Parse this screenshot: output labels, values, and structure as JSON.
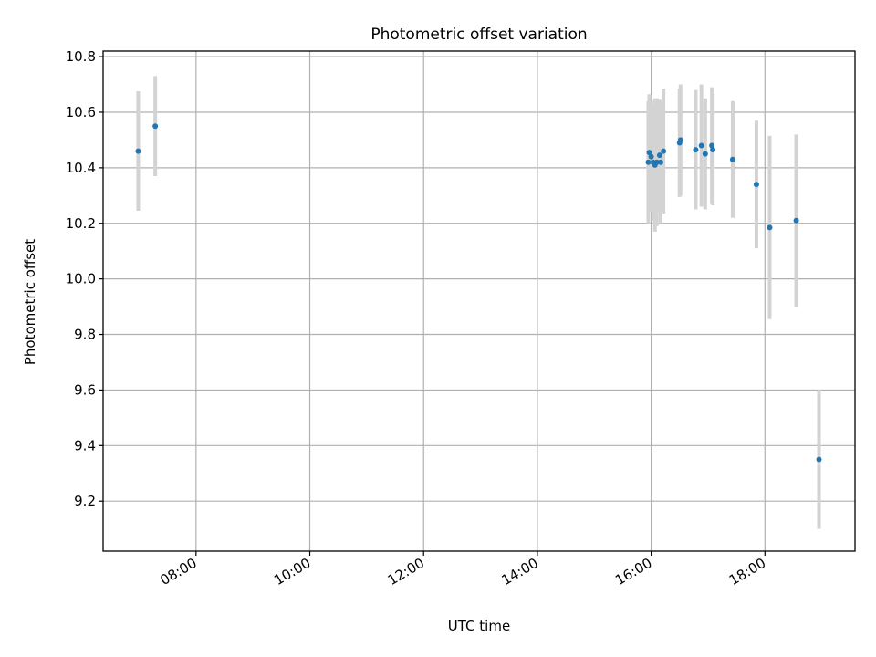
{
  "chart_data": {
    "type": "scatter",
    "title": "Photometric offset variation",
    "xlabel": "UTC time",
    "ylabel": "Photometric offset",
    "xlim": [
      "06:22",
      "19:35"
    ],
    "ylim": [
      9.02,
      10.82
    ],
    "x_ticks": [
      "08:00",
      "10:00",
      "12:00",
      "14:00",
      "16:00",
      "18:00"
    ],
    "y_ticks": [
      "9.2",
      "9.4",
      "9.6",
      "9.8",
      "10.0",
      "10.2",
      "10.4",
      "10.6",
      "10.8"
    ],
    "grid": true,
    "legend": "none",
    "colors": {
      "point": "#1f77b4",
      "errorbar": "#d3d3d3",
      "grid": "#b0b0b0"
    },
    "points": [
      {
        "x": "06:59",
        "y": 10.46,
        "err": 0.215
      },
      {
        "x": "07:17",
        "y": 10.55,
        "err": 0.18
      },
      {
        "x": "15:57",
        "y": 10.42,
        "err": 0.22
      },
      {
        "x": "15:58",
        "y": 10.455,
        "err": 0.21
      },
      {
        "x": "16:00",
        "y": 10.44,
        "err": 0.2
      },
      {
        "x": "16:02",
        "y": 10.42,
        "err": 0.21
      },
      {
        "x": "16:04",
        "y": 10.41,
        "err": 0.24
      },
      {
        "x": "16:06",
        "y": 10.42,
        "err": 0.23
      },
      {
        "x": "16:09",
        "y": 10.445,
        "err": 0.2
      },
      {
        "x": "16:10",
        "y": 10.42,
        "err": 0.22
      },
      {
        "x": "16:13",
        "y": 10.46,
        "err": 0.225
      },
      {
        "x": "16:30",
        "y": 10.49,
        "err": 0.195
      },
      {
        "x": "16:31",
        "y": 10.5,
        "err": 0.2
      },
      {
        "x": "16:47",
        "y": 10.465,
        "err": 0.215
      },
      {
        "x": "16:53",
        "y": 10.48,
        "err": 0.22
      },
      {
        "x": "16:57",
        "y": 10.45,
        "err": 0.2
      },
      {
        "x": "17:04",
        "y": 10.48,
        "err": 0.21
      },
      {
        "x": "17:05",
        "y": 10.465,
        "err": 0.2
      },
      {
        "x": "17:26",
        "y": 10.43,
        "err": 0.21
      },
      {
        "x": "17:51",
        "y": 10.34,
        "err": 0.23
      },
      {
        "x": "18:05",
        "y": 10.185,
        "err": 0.33
      },
      {
        "x": "18:33",
        "y": 10.21,
        "err": 0.31
      },
      {
        "x": "18:57",
        "y": 9.35,
        "err": 0.25
      }
    ]
  }
}
